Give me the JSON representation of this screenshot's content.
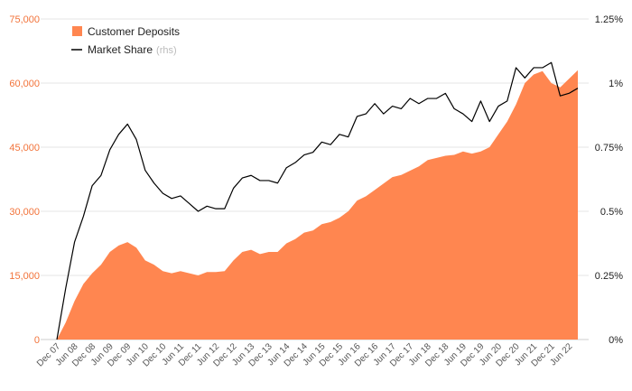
{
  "chart_data": {
    "type": "area",
    "x": [
      "Dec 07",
      "Mar 08",
      "Jun 08",
      "Sep 08",
      "Dec 08",
      "Mar 09",
      "Jun 09",
      "Sep 09",
      "Dec 09",
      "Mar 10",
      "Jun 10",
      "Sep 10",
      "Dec 10",
      "Mar 11",
      "Jun 11",
      "Sep 11",
      "Dec 11",
      "Mar 12",
      "Jun 12",
      "Sep 12",
      "Dec 12",
      "Mar 13",
      "Jun 13",
      "Sep 13",
      "Dec 13",
      "Mar 14",
      "Jun 14",
      "Sep 14",
      "Dec 14",
      "Mar 15",
      "Jun 15",
      "Sep 15",
      "Dec 15",
      "Mar 16",
      "Jun 16",
      "Sep 16",
      "Dec 16",
      "Mar 17",
      "Jun 17",
      "Sep 17",
      "Dec 17",
      "Mar 18",
      "Jun 18",
      "Sep 18",
      "Dec 18",
      "Mar 19",
      "Jun 19",
      "Sep 19",
      "Dec 19",
      "Mar 20",
      "Jun 20",
      "Sep 20",
      "Dec 20",
      "Mar 21",
      "Jun 21",
      "Sep 21",
      "Dec 21",
      "Mar 22",
      "Jun 22",
      "Sep 22"
    ],
    "x_tick_labels": [
      "Dec 07",
      "Jun 08",
      "Dec 08",
      "Jun 09",
      "Dec 09",
      "Jun 10",
      "Dec 10",
      "Jun 11",
      "Dec 11",
      "Jun 12",
      "Dec 12",
      "Jun 13",
      "Dec 13",
      "Jun 14",
      "Dec 14",
      "Jun 15",
      "Dec 15",
      "Jun 16",
      "Dec 16",
      "Jun 17",
      "Dec 17",
      "Jun 18",
      "Dec 18",
      "Jun 19",
      "Dec 19",
      "Jun 20",
      "Dec 20",
      "Jun 21",
      "Dec 21",
      "Jun 22"
    ],
    "series": [
      {
        "name": "Customer Deposits",
        "type": "area",
        "axis": "left",
        "color": "#ff8650",
        "values": [
          0,
          4000,
          9000,
          13000,
          15500,
          17500,
          20500,
          22000,
          22800,
          21500,
          18500,
          17500,
          16000,
          15500,
          16000,
          15500,
          15000,
          15800,
          15800,
          16000,
          18500,
          20500,
          21000,
          20000,
          20500,
          20500,
          22500,
          23500,
          25000,
          25500,
          27000,
          27500,
          28500,
          30000,
          32500,
          33500,
          35000,
          36500,
          38000,
          38500,
          39500,
          40500,
          42000,
          42500,
          43000,
          43200,
          44000,
          43500,
          44000,
          45000,
          48000,
          51000,
          55000,
          60000,
          62000,
          62800,
          60000,
          59000,
          61000,
          63000
        ]
      },
      {
        "name": "Market Share",
        "name_note": "(rhs)",
        "type": "line",
        "axis": "right",
        "color": "#000000",
        "values": [
          0,
          0.2,
          0.38,
          0.48,
          0.6,
          0.64,
          0.74,
          0.8,
          0.84,
          0.78,
          0.66,
          0.61,
          0.57,
          0.55,
          0.56,
          0.53,
          0.5,
          0.52,
          0.51,
          0.51,
          0.59,
          0.63,
          0.64,
          0.62,
          0.62,
          0.61,
          0.67,
          0.69,
          0.72,
          0.73,
          0.77,
          0.76,
          0.8,
          0.79,
          0.87,
          0.88,
          0.92,
          0.88,
          0.91,
          0.9,
          0.94,
          0.92,
          0.94,
          0.94,
          0.96,
          0.9,
          0.88,
          0.85,
          0.93,
          0.85,
          0.91,
          0.93,
          1.06,
          1.02,
          1.06,
          1.06,
          1.08,
          0.95,
          0.96,
          0.98
        ]
      }
    ],
    "y_left": {
      "min": 0,
      "max": 75000,
      "ticks": [
        0,
        15000,
        30000,
        45000,
        60000,
        75000
      ],
      "tick_labels": [
        "0",
        "15,000",
        "30,000",
        "45,000",
        "60,000",
        "75,000"
      ],
      "color": "#f2733a"
    },
    "y_right": {
      "min": 0,
      "max": 1.25,
      "ticks": [
        0,
        0.25,
        0.5,
        0.75,
        1,
        1.25
      ],
      "tick_labels": [
        "0%",
        "0.25%",
        "0.5%",
        "0.75%",
        "1%",
        "1.25%"
      ]
    },
    "grid": true,
    "legend_position": "top-left",
    "title": "",
    "xlabel": "",
    "ylabel": ""
  }
}
